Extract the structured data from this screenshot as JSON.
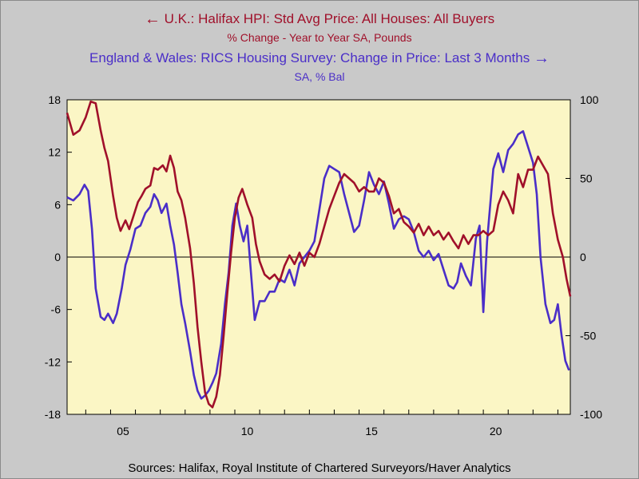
{
  "legend": {
    "series1_title": "U.K.: Halifax HPI: Std Avg Price: All Houses: All Buyers",
    "series1_sub": "% Change - Year to Year    SA, Pounds",
    "series2_title": "England & Wales: RICS Housing Survey: Change in Price: Last 3 Months",
    "series2_sub": "SA, % Bal",
    "left_arrow": "←",
    "right_arrow": "→"
  },
  "source": "Sources:  Halifax, Royal Institute of Chartered Surveyors/Haver Analytics",
  "colors": {
    "background": "#c9c9c9",
    "plot_bg": "#fbf6c5",
    "series1": "#a0102a",
    "series2": "#4a2ec8"
  },
  "chart_data": {
    "type": "line",
    "title": "",
    "x_range": [
      2003.25,
      2023.5
    ],
    "x_ticks": [
      {
        "value": 2005,
        "label": "05"
      },
      {
        "value": 2010,
        "label": "10"
      },
      {
        "value": 2015,
        "label": "15"
      },
      {
        "value": 2020,
        "label": "20"
      }
    ],
    "y_left": {
      "range": [
        -18,
        18
      ],
      "ticks": [
        18,
        12,
        6,
        0,
        -6,
        -12,
        -18
      ]
    },
    "y_right": {
      "range": [
        -100,
        100
      ],
      "ticks": [
        100,
        50,
        0,
        -50,
        -100
      ]
    },
    "zero_line": true,
    "series": [
      {
        "name": "U.K.: Halifax HPI: Std Avg Price: All Houses: All Buyers",
        "axis": "left",
        "color": "#a0102a",
        "points": [
          [
            2003.25,
            16.5
          ],
          [
            2003.5,
            14.0
          ],
          [
            2003.75,
            14.5
          ],
          [
            2004.0,
            16.0
          ],
          [
            2004.2,
            17.8
          ],
          [
            2004.4,
            17.6
          ],
          [
            2004.6,
            14.5
          ],
          [
            2004.75,
            12.5
          ],
          [
            2004.9,
            11.0
          ],
          [
            2005.1,
            7.0
          ],
          [
            2005.25,
            4.5
          ],
          [
            2005.4,
            3.0
          ],
          [
            2005.6,
            4.2
          ],
          [
            2005.75,
            3.2
          ],
          [
            2005.9,
            4.5
          ],
          [
            2006.1,
            6.3
          ],
          [
            2006.25,
            7.0
          ],
          [
            2006.4,
            7.8
          ],
          [
            2006.6,
            8.2
          ],
          [
            2006.75,
            10.2
          ],
          [
            2006.9,
            10.0
          ],
          [
            2007.1,
            10.5
          ],
          [
            2007.25,
            9.8
          ],
          [
            2007.4,
            11.6
          ],
          [
            2007.55,
            10.2
          ],
          [
            2007.7,
            7.5
          ],
          [
            2007.85,
            6.5
          ],
          [
            2008.0,
            4.5
          ],
          [
            2008.2,
            1.0
          ],
          [
            2008.35,
            -3.0
          ],
          [
            2008.5,
            -8.0
          ],
          [
            2008.65,
            -12.0
          ],
          [
            2008.8,
            -15.5
          ],
          [
            2008.95,
            -16.8
          ],
          [
            2009.1,
            -17.2
          ],
          [
            2009.25,
            -16.0
          ],
          [
            2009.4,
            -13.5
          ],
          [
            2009.55,
            -9.0
          ],
          [
            2009.7,
            -4.0
          ],
          [
            2009.85,
            0.5
          ],
          [
            2010.0,
            4.5
          ],
          [
            2010.15,
            6.8
          ],
          [
            2010.3,
            7.8
          ],
          [
            2010.5,
            6.0
          ],
          [
            2010.7,
            4.5
          ],
          [
            2010.85,
            1.5
          ],
          [
            2011.0,
            -0.5
          ],
          [
            2011.2,
            -2.0
          ],
          [
            2011.4,
            -2.5
          ],
          [
            2011.6,
            -2.0
          ],
          [
            2011.8,
            -2.8
          ],
          [
            2012.0,
            -1.0
          ],
          [
            2012.2,
            0.2
          ],
          [
            2012.4,
            -0.8
          ],
          [
            2012.6,
            0.5
          ],
          [
            2012.8,
            -1.0
          ],
          [
            2013.0,
            0.5
          ],
          [
            2013.2,
            0.0
          ],
          [
            2013.4,
            1.5
          ],
          [
            2013.6,
            3.5
          ],
          [
            2013.8,
            5.5
          ],
          [
            2014.0,
            7.0
          ],
          [
            2014.2,
            8.5
          ],
          [
            2014.4,
            9.5
          ],
          [
            2014.6,
            9.0
          ],
          [
            2014.8,
            8.5
          ],
          [
            2015.0,
            7.5
          ],
          [
            2015.2,
            8.0
          ],
          [
            2015.4,
            7.5
          ],
          [
            2015.6,
            7.5
          ],
          [
            2015.8,
            9.0
          ],
          [
            2016.0,
            8.5
          ],
          [
            2016.2,
            7.0
          ],
          [
            2016.4,
            5.0
          ],
          [
            2016.6,
            5.5
          ],
          [
            2016.8,
            4.0
          ],
          [
            2017.0,
            3.5
          ],
          [
            2017.2,
            2.8
          ],
          [
            2017.4,
            3.8
          ],
          [
            2017.6,
            2.5
          ],
          [
            2017.8,
            3.5
          ],
          [
            2018.0,
            2.5
          ],
          [
            2018.2,
            3.0
          ],
          [
            2018.4,
            2.0
          ],
          [
            2018.6,
            2.8
          ],
          [
            2018.8,
            1.8
          ],
          [
            2019.0,
            1.0
          ],
          [
            2019.2,
            2.5
          ],
          [
            2019.4,
            1.5
          ],
          [
            2019.6,
            2.5
          ],
          [
            2019.8,
            2.5
          ],
          [
            2020.0,
            3.0
          ],
          [
            2020.2,
            2.5
          ],
          [
            2020.4,
            3.0
          ],
          [
            2020.6,
            6.0
          ],
          [
            2020.8,
            7.5
          ],
          [
            2021.0,
            6.5
          ],
          [
            2021.2,
            5.0
          ],
          [
            2021.4,
            9.5
          ],
          [
            2021.6,
            8.0
          ],
          [
            2021.8,
            10.0
          ],
          [
            2022.0,
            10.0
          ],
          [
            2022.2,
            11.5
          ],
          [
            2022.4,
            10.5
          ],
          [
            2022.6,
            9.5
          ],
          [
            2022.8,
            5.0
          ],
          [
            2023.0,
            2.0
          ],
          [
            2023.2,
            0.0
          ],
          [
            2023.35,
            -2.5
          ],
          [
            2023.5,
            -4.5
          ]
        ]
      },
      {
        "name": "England & Wales: RICS Housing Survey: Change in Price: Last 3 Months",
        "axis": "right",
        "color": "#4a2ec8",
        "points": [
          [
            2003.25,
            38
          ],
          [
            2003.5,
            36
          ],
          [
            2003.75,
            40
          ],
          [
            2003.95,
            46
          ],
          [
            2004.1,
            42
          ],
          [
            2004.25,
            18
          ],
          [
            2004.4,
            -20
          ],
          [
            2004.6,
            -38
          ],
          [
            2004.75,
            -40
          ],
          [
            2004.9,
            -36
          ],
          [
            2005.1,
            -42
          ],
          [
            2005.25,
            -36
          ],
          [
            2005.45,
            -20
          ],
          [
            2005.6,
            -5
          ],
          [
            2005.8,
            5
          ],
          [
            2006.0,
            18
          ],
          [
            2006.2,
            20
          ],
          [
            2006.4,
            28
          ],
          [
            2006.6,
            32
          ],
          [
            2006.75,
            40
          ],
          [
            2006.9,
            36
          ],
          [
            2007.05,
            28
          ],
          [
            2007.25,
            34
          ],
          [
            2007.4,
            20
          ],
          [
            2007.55,
            8
          ],
          [
            2007.7,
            -10
          ],
          [
            2007.85,
            -30
          ],
          [
            2008.0,
            -42
          ],
          [
            2008.2,
            -60
          ],
          [
            2008.35,
            -75
          ],
          [
            2008.5,
            -85
          ],
          [
            2008.65,
            -90
          ],
          [
            2008.8,
            -88
          ],
          [
            2008.95,
            -85
          ],
          [
            2009.1,
            -80
          ],
          [
            2009.25,
            -74
          ],
          [
            2009.45,
            -55
          ],
          [
            2009.6,
            -30
          ],
          [
            2009.75,
            -10
          ],
          [
            2009.9,
            20
          ],
          [
            2010.05,
            34
          ],
          [
            2010.2,
            20
          ],
          [
            2010.35,
            10
          ],
          [
            2010.5,
            20
          ],
          [
            2010.65,
            -10
          ],
          [
            2010.8,
            -40
          ],
          [
            2011.0,
            -28
          ],
          [
            2011.2,
            -28
          ],
          [
            2011.4,
            -22
          ],
          [
            2011.6,
            -22
          ],
          [
            2011.8,
            -14
          ],
          [
            2012.0,
            -16
          ],
          [
            2012.2,
            -8
          ],
          [
            2012.4,
            -18
          ],
          [
            2012.6,
            -4
          ],
          [
            2012.8,
            0
          ],
          [
            2013.0,
            4
          ],
          [
            2013.2,
            10
          ],
          [
            2013.4,
            30
          ],
          [
            2013.6,
            50
          ],
          [
            2013.8,
            58
          ],
          [
            2014.0,
            56
          ],
          [
            2014.2,
            54
          ],
          [
            2014.4,
            40
          ],
          [
            2014.6,
            28
          ],
          [
            2014.8,
            16
          ],
          [
            2015.0,
            20
          ],
          [
            2015.2,
            36
          ],
          [
            2015.4,
            54
          ],
          [
            2015.6,
            46
          ],
          [
            2015.8,
            40
          ],
          [
            2016.0,
            48
          ],
          [
            2016.2,
            34
          ],
          [
            2016.4,
            18
          ],
          [
            2016.6,
            24
          ],
          [
            2016.8,
            26
          ],
          [
            2017.0,
            24
          ],
          [
            2017.2,
            16
          ],
          [
            2017.4,
            4
          ],
          [
            2017.6,
            0
          ],
          [
            2017.8,
            4
          ],
          [
            2018.0,
            -2
          ],
          [
            2018.2,
            2
          ],
          [
            2018.4,
            -8
          ],
          [
            2018.6,
            -18
          ],
          [
            2018.8,
            -20
          ],
          [
            2018.95,
            -16
          ],
          [
            2019.1,
            -4
          ],
          [
            2019.3,
            -12
          ],
          [
            2019.5,
            -18
          ],
          [
            2019.7,
            12
          ],
          [
            2019.85,
            20
          ],
          [
            2020.0,
            -35
          ],
          [
            2020.15,
            10
          ],
          [
            2020.4,
            56
          ],
          [
            2020.6,
            66
          ],
          [
            2020.8,
            54
          ],
          [
            2021.0,
            68
          ],
          [
            2021.2,
            72
          ],
          [
            2021.4,
            78
          ],
          [
            2021.6,
            80
          ],
          [
            2021.8,
            70
          ],
          [
            2022.0,
            60
          ],
          [
            2022.15,
            40
          ],
          [
            2022.3,
            0
          ],
          [
            2022.5,
            -30
          ],
          [
            2022.7,
            -42
          ],
          [
            2022.85,
            -40
          ],
          [
            2023.0,
            -30
          ],
          [
            2023.15,
            -50
          ],
          [
            2023.3,
            -66
          ],
          [
            2023.45,
            -72
          ]
        ]
      }
    ]
  }
}
